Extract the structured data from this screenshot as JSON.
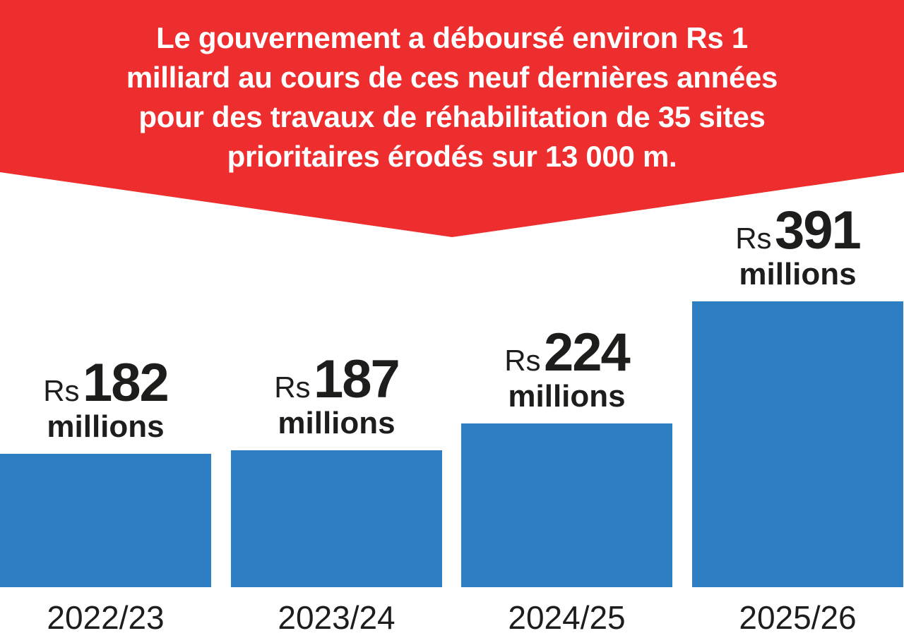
{
  "title_lines": [
    "Le gouvernement a déboursé environ Rs 1",
    "milliard au cours de ces neuf dernières années",
    "pour des travaux de réhabilitation de 35 sites",
    "prioritaires érodés sur 13 000 m."
  ],
  "colors": {
    "banner": "#ee2e2e",
    "bar": "#2e7ec4",
    "text": "#1d1d1b"
  },
  "chart_data": {
    "type": "bar",
    "title": "Le gouvernement a déboursé environ Rs 1 milliard au cours de ces neuf dernières années pour des travaux de réhabilitation de 35 sites prioritaires érodés sur 13 000 m.",
    "categories": [
      "2022/23",
      "2023/24",
      "2024/25",
      "2025/26"
    ],
    "values": [
      182,
      187,
      224,
      391
    ],
    "value_prefix": "Rs",
    "value_unit": "millions",
    "xlabel": "",
    "ylabel": "",
    "ylim": [
      0,
      391
    ],
    "grid": false
  }
}
